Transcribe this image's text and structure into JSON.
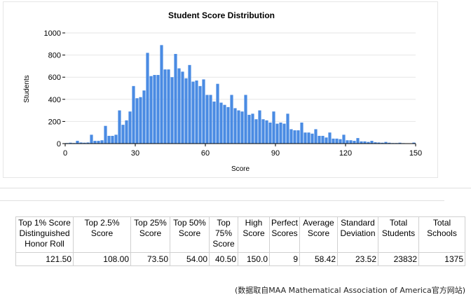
{
  "chart_data": {
    "type": "bar",
    "title": "Student Score Distribution",
    "xlabel": "Score",
    "ylabel": "Students",
    "xlim": [
      0,
      150
    ],
    "ylim": [
      0,
      1000
    ],
    "xticks": [
      "0",
      "30",
      "60",
      "90",
      "120",
      "150"
    ],
    "yticks": [
      "0",
      "200",
      "400",
      "600",
      "800",
      "1000"
    ],
    "grid": "horizontal",
    "legend": "none",
    "bar_color": "#4a8be3",
    "bars": [
      {
        "x": 1.5,
        "y": 5
      },
      {
        "x": 3,
        "y": 8
      },
      {
        "x": 4.5,
        "y": 5
      },
      {
        "x": 6,
        "y": 25
      },
      {
        "x": 7.5,
        "y": 10
      },
      {
        "x": 9,
        "y": 8
      },
      {
        "x": 10.5,
        "y": 10
      },
      {
        "x": 12,
        "y": 80
      },
      {
        "x": 13.5,
        "y": 25
      },
      {
        "x": 15,
        "y": 25
      },
      {
        "x": 16.5,
        "y": 30
      },
      {
        "x": 18,
        "y": 160
      },
      {
        "x": 19.5,
        "y": 70
      },
      {
        "x": 21,
        "y": 70
      },
      {
        "x": 22.5,
        "y": 80
      },
      {
        "x": 24,
        "y": 300
      },
      {
        "x": 25.5,
        "y": 170
      },
      {
        "x": 27,
        "y": 210
      },
      {
        "x": 28.5,
        "y": 290
      },
      {
        "x": 30,
        "y": 520
      },
      {
        "x": 31.5,
        "y": 410
      },
      {
        "x": 33,
        "y": 420
      },
      {
        "x": 34.5,
        "y": 480
      },
      {
        "x": 36,
        "y": 820
      },
      {
        "x": 37.5,
        "y": 610
      },
      {
        "x": 39,
        "y": 620
      },
      {
        "x": 40.5,
        "y": 620
      },
      {
        "x": 42,
        "y": 890
      },
      {
        "x": 43.5,
        "y": 670
      },
      {
        "x": 45,
        "y": 670
      },
      {
        "x": 46.5,
        "y": 600
      },
      {
        "x": 48,
        "y": 810
      },
      {
        "x": 49.5,
        "y": 680
      },
      {
        "x": 51,
        "y": 650
      },
      {
        "x": 52.5,
        "y": 590
      },
      {
        "x": 54,
        "y": 710
      },
      {
        "x": 55.5,
        "y": 560
      },
      {
        "x": 57,
        "y": 570
      },
      {
        "x": 58.5,
        "y": 520
      },
      {
        "x": 60,
        "y": 580
      },
      {
        "x": 61.5,
        "y": 440
      },
      {
        "x": 63,
        "y": 440
      },
      {
        "x": 64.5,
        "y": 380
      },
      {
        "x": 66,
        "y": 540
      },
      {
        "x": 67.5,
        "y": 370
      },
      {
        "x": 69,
        "y": 350
      },
      {
        "x": 70.5,
        "y": 330
      },
      {
        "x": 72,
        "y": 440
      },
      {
        "x": 73.5,
        "y": 320
      },
      {
        "x": 75,
        "y": 300
      },
      {
        "x": 76.5,
        "y": 290
      },
      {
        "x": 78,
        "y": 440
      },
      {
        "x": 79.5,
        "y": 260
      },
      {
        "x": 81,
        "y": 270
      },
      {
        "x": 82.5,
        "y": 220
      },
      {
        "x": 84,
        "y": 300
      },
      {
        "x": 85.5,
        "y": 220
      },
      {
        "x": 87,
        "y": 210
      },
      {
        "x": 88.5,
        "y": 190
      },
      {
        "x": 90,
        "y": 290
      },
      {
        "x": 91.5,
        "y": 180
      },
      {
        "x": 93,
        "y": 190
      },
      {
        "x": 94.5,
        "y": 180
      },
      {
        "x": 96,
        "y": 270
      },
      {
        "x": 97.5,
        "y": 130
      },
      {
        "x": 99,
        "y": 120
      },
      {
        "x": 100.5,
        "y": 120
      },
      {
        "x": 102,
        "y": 190
      },
      {
        "x": 103.5,
        "y": 100
      },
      {
        "x": 105,
        "y": 100
      },
      {
        "x": 106.5,
        "y": 90
      },
      {
        "x": 108,
        "y": 130
      },
      {
        "x": 109.5,
        "y": 70
      },
      {
        "x": 111,
        "y": 70
      },
      {
        "x": 112.5,
        "y": 55
      },
      {
        "x": 114,
        "y": 100
      },
      {
        "x": 115.5,
        "y": 45
      },
      {
        "x": 117,
        "y": 45
      },
      {
        "x": 118.5,
        "y": 40
      },
      {
        "x": 120,
        "y": 80
      },
      {
        "x": 121.5,
        "y": 30
      },
      {
        "x": 123,
        "y": 30
      },
      {
        "x": 124.5,
        "y": 25
      },
      {
        "x": 126,
        "y": 50
      },
      {
        "x": 127.5,
        "y": 20
      },
      {
        "x": 129,
        "y": 20
      },
      {
        "x": 130.5,
        "y": 15
      },
      {
        "x": 132,
        "y": 25
      },
      {
        "x": 133.5,
        "y": 12
      },
      {
        "x": 135,
        "y": 10
      },
      {
        "x": 136.5,
        "y": 8
      },
      {
        "x": 138,
        "y": 15
      },
      {
        "x": 139.5,
        "y": 8
      },
      {
        "x": 141,
        "y": 5
      },
      {
        "x": 142.5,
        "y": 5
      },
      {
        "x": 144,
        "y": 8
      },
      {
        "x": 145.5,
        "y": 4
      },
      {
        "x": 147,
        "y": 3
      },
      {
        "x": 148.5,
        "y": 3
      },
      {
        "x": 150,
        "y": 9
      }
    ]
  },
  "stats_table": {
    "headers": [
      "Top 1% Score Distinguished Honor Roll",
      "Top 2.5% Score",
      "Top 25% Score",
      "Top 50% Score",
      "Top 75% Score",
      "High Score",
      "Perfect Scores",
      "Average Score",
      "Standard Deviation",
      "Total Students",
      "Total Schools"
    ],
    "values": [
      "121.50",
      "108.00",
      "73.50",
      "54.00",
      "40.50",
      "150.0",
      "9",
      "58.42",
      "23.52",
      "23832",
      "1375"
    ]
  },
  "source_note": "(数据取自MAA Mathematical Association of America官方网站)"
}
